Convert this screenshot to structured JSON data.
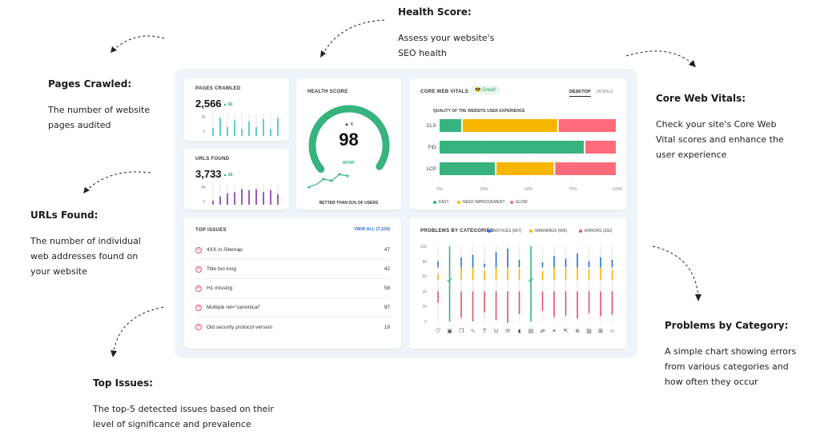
{
  "annotations": {
    "pages_crawled": {
      "title": "Pages Crawled:",
      "lines": [
        "The number of website",
        "pages audited"
      ]
    },
    "health_score": {
      "title": "Health Score:",
      "lines": [
        "Assess your website's",
        "SEO health"
      ]
    },
    "core_web_vitals": {
      "title": "Core Web Vitals:",
      "lines": [
        "Check your site's Core Web",
        "Vital scores and enhance the",
        "user experience"
      ]
    },
    "urls_found": {
      "title": "URLs Found:",
      "lines": [
        "The number of individual",
        "web addresses found on",
        "your website"
      ]
    },
    "problems_by_category": {
      "title": "Problems by Category:",
      "lines": [
        "A simple chart showing errors",
        "from various categories and",
        "how often they occur"
      ]
    },
    "top_issues": {
      "title": "Top Issues:",
      "lines": [
        "The top-5 detected issues based on their",
        "level of significance and prevalence"
      ]
    }
  },
  "pages_crawled": {
    "title": "PAGES CRAWLED",
    "value": "2,566",
    "delta": "▲ 63",
    "axis": [
      "3K",
      "0"
    ],
    "color": "#3dbfbf",
    "bars": [
      0.35,
      0.8,
      0.4,
      0.7,
      0.3,
      0.65,
      0.4,
      0.75,
      0.3,
      0.8
    ]
  },
  "urls_found": {
    "title": "URLS FOUND",
    "value": "3,733",
    "delta": "▲ 33",
    "axis": [
      "4K",
      "0"
    ],
    "color": "#8b2fa6",
    "bars": [
      0.2,
      0.4,
      0.55,
      0.6,
      0.75,
      0.7,
      0.75,
      0.6,
      0.7,
      0.5
    ]
  },
  "health_score": {
    "title": "HEALTH SCORE",
    "value": "98",
    "delta": "▲ 4",
    "badge": "WOW!",
    "footer": "BETTER THAN 51% OF USERS",
    "score_fraction": 0.98,
    "color": "#36b37e"
  },
  "core_web_vitals": {
    "title": "CORE WEB VITALS",
    "badge": "Great!",
    "badge_icon": "😎",
    "tabs": [
      "DESKTOP",
      "MOBILE"
    ],
    "subtitle": "QUALITY OF THE WEBSITE USER EXPERIENCE",
    "x_ticks": [
      "0%",
      "25%",
      "50%",
      "75%",
      "100%"
    ],
    "legend": [
      "FAST",
      "NEED IMPROVEMENT",
      "SLOW"
    ],
    "colors": {
      "fast": "#36b37e",
      "need": "#f7b500",
      "slow": "#ff6b7a"
    },
    "rows": [
      {
        "label": "CLS:",
        "fast": 13,
        "need": 54,
        "slow": 33
      },
      {
        "label": "FID:",
        "fast": 82,
        "need": 0,
        "slow": 18
      },
      {
        "label": "LCP:",
        "fast": 32,
        "need": 33,
        "slow": 35
      }
    ]
  },
  "top_issues": {
    "title": "TOP ISSUES",
    "view_all": "VIEW ALL (7,234)",
    "items": [
      {
        "label": "4XX in Sitemap",
        "count": "47"
      },
      {
        "label": "Title too long",
        "count": "42"
      },
      {
        "label": "H1 missing",
        "count": "58"
      },
      {
        "label": "Multiple rel=\"canonical\"",
        "count": "97"
      },
      {
        "label": "Old security protocol version",
        "count": "19"
      }
    ]
  },
  "problems": {
    "title": "PROBLEMS BY CATEGORIES",
    "legend": [
      {
        "label": "NOTICES (567)",
        "color": "#2e6fd8"
      },
      {
        "label": "WARNINGS (666)",
        "color": "#f7b500"
      },
      {
        "label": "ERRORS (332)",
        "color": "#e0556b"
      }
    ],
    "y_ticks": [
      "100",
      "80",
      "60",
      "40",
      "20",
      "0"
    ],
    "icons": [
      "shield-icon",
      "image-icon",
      "copy-icon",
      "pulse-icon",
      "text-icon",
      "underline-icon",
      "mail-icon",
      "speaker-icon",
      "document-icon",
      "refresh-icon",
      "link-icon",
      "external-link-icon",
      "globe-icon",
      "photo-icon",
      "x-icon",
      "code-icon"
    ],
    "icon_glyphs": [
      "⛉",
      "▣",
      "❐",
      "∿",
      "T",
      "U",
      "✉",
      "◖",
      "▤",
      "⇄",
      "⚭",
      "⇱",
      "⊕",
      "▨",
      "⊠",
      "‹›"
    ],
    "columns": [
      {
        "notice": 5,
        "warning": 10,
        "error": 15,
        "check": false
      },
      {
        "notice": 0,
        "warning": 0,
        "error": 0,
        "check": true
      },
      {
        "notice": 8,
        "warning": 20,
        "error": 35
      },
      {
        "notice": 10,
        "warning": 25,
        "error": 40
      },
      {
        "notice": 3,
        "warning": 15,
        "error": 28
      },
      {
        "notice": 12,
        "warning": 22,
        "error": 38
      },
      {
        "notice": 15,
        "warning": 28,
        "error": 42
      },
      {
        "notice": 6,
        "warning": 18,
        "error": 30
      },
      {
        "notice": 0,
        "warning": 0,
        "error": 0,
        "check": true
      },
      {
        "notice": 4,
        "warning": 14,
        "error": 26
      },
      {
        "notice": 9,
        "warning": 21,
        "error": 34
      },
      {
        "notice": 7,
        "warning": 19,
        "error": 32
      },
      {
        "notice": 11,
        "warning": 23,
        "error": 36
      },
      {
        "notice": 5,
        "warning": 17,
        "error": 29
      },
      {
        "notice": 8,
        "warning": 20,
        "error": 33
      },
      {
        "notice": 6,
        "warning": 16,
        "error": 31
      }
    ]
  }
}
